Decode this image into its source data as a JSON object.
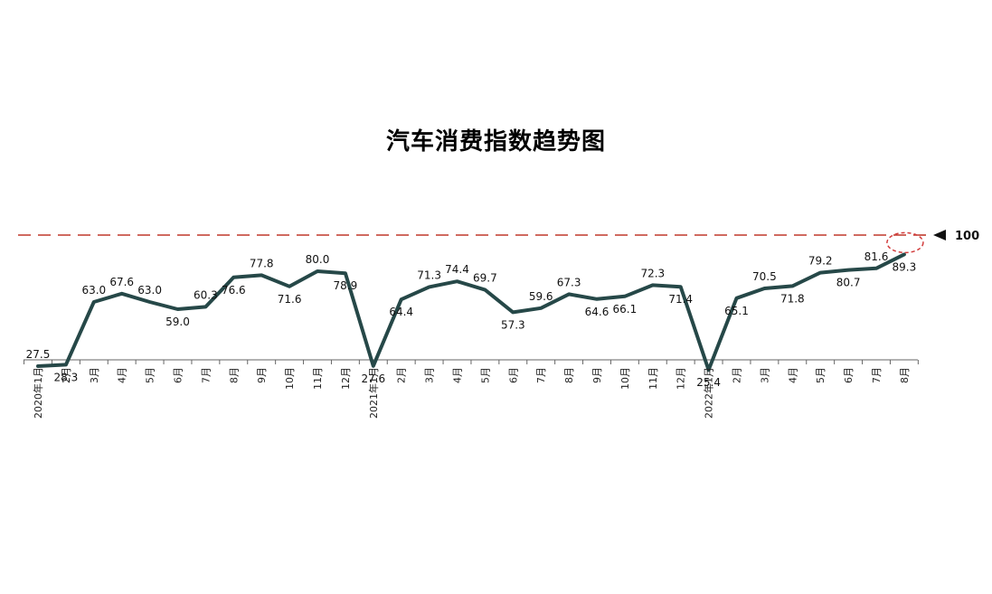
{
  "chart_data": {
    "type": "line",
    "title": "汽车消费指数趋势图",
    "xlabel": "",
    "ylabel": "",
    "ylim": [
      0,
      100
    ],
    "grid": false,
    "categories": [
      "2020年1月",
      "2月",
      "3月",
      "4月",
      "5月",
      "6月",
      "7月",
      "8月",
      "9月",
      "10月",
      "11月",
      "12月",
      "2021年1月",
      "2月",
      "3月",
      "4月",
      "5月",
      "6月",
      "7月",
      "8月",
      "9月",
      "10月",
      "11月",
      "12月",
      "2022年1月",
      "2月",
      "3月",
      "4月",
      "5月",
      "6月",
      "7月",
      "8月"
    ],
    "series": [
      {
        "values": [
          27.5,
          28.3,
          63.0,
          67.6,
          63.0,
          59.0,
          60.3,
          76.6,
          77.8,
          71.6,
          80.0,
          78.9,
          27.6,
          64.4,
          71.3,
          74.4,
          69.7,
          57.3,
          59.6,
          67.3,
          64.6,
          66.1,
          72.3,
          71.4,
          25.4,
          65.1,
          70.5,
          71.8,
          79.2,
          80.7,
          81.6,
          89.3
        ],
        "labels": [
          "27.5",
          "28.3",
          "63.0",
          "67.6",
          "63.0",
          "59.0",
          "60.3",
          "76.6",
          "77.8",
          "71.6",
          "80.0",
          "78.9",
          "27.6",
          "64.4",
          "71.3",
          "74.4",
          "69.7",
          "57.3",
          "59.6",
          "67.3",
          "64.6",
          "66.1",
          "72.3",
          "71.4",
          "25.4",
          "65.1",
          "70.5",
          "71.8",
          "79.2",
          "80.7",
          "81.6",
          "89.3"
        ],
        "color": "#264848"
      }
    ],
    "reference_line": {
      "value": 100,
      "label": "100",
      "color": "#c0392b",
      "style": "dashed"
    },
    "highlight": {
      "index": 31,
      "marker": "dashed-circle",
      "color": "#d23c3c"
    }
  }
}
